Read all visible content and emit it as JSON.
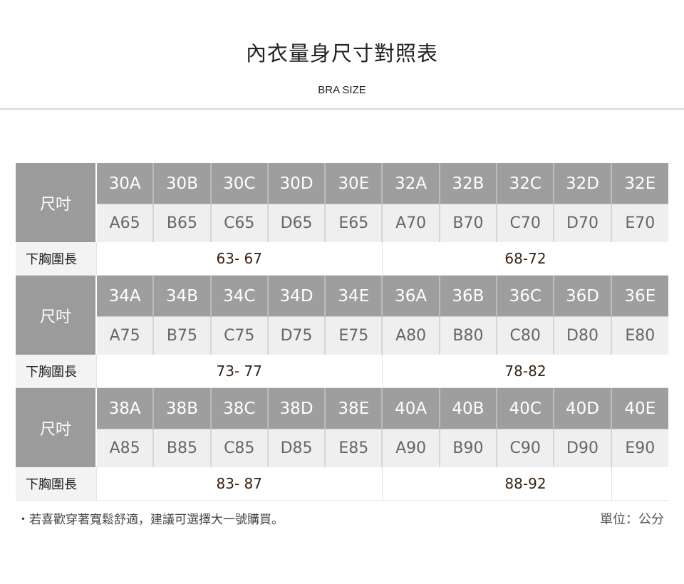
{
  "header": {
    "title": "內衣量身尺寸對照表",
    "subtitle": "BRA SIZE"
  },
  "table": {
    "size_label": "尺吋",
    "measure_label": "下胸圍長",
    "blocks": [
      {
        "sizes": [
          "30A",
          "30B",
          "30C",
          "30D",
          "30E",
          "32A",
          "32B",
          "32C",
          "32D",
          "32E"
        ],
        "cups": [
          "A65",
          "B65",
          "C65",
          "D65",
          "E65",
          "A70",
          "B70",
          "C70",
          "D70",
          "E70"
        ],
        "ranges": [
          "63- 67",
          "68-72"
        ]
      },
      {
        "sizes": [
          "34A",
          "34B",
          "34C",
          "34D",
          "34E",
          "36A",
          "36B",
          "36C",
          "36D",
          "36E"
        ],
        "cups": [
          "A75",
          "B75",
          "C75",
          "D75",
          "E75",
          "A80",
          "B80",
          "C80",
          "D80",
          "E80"
        ],
        "ranges": [
          "73- 77",
          "78-82"
        ]
      },
      {
        "sizes": [
          "38A",
          "38B",
          "38C",
          "38D",
          "38E",
          "40A",
          "40B",
          "40C",
          "40D",
          "40E"
        ],
        "cups": [
          "A85",
          "B85",
          "C85",
          "D85",
          "E85",
          "A90",
          "B90",
          "C90",
          "D90",
          "E90"
        ],
        "ranges": [
          "83- 87",
          "88-92"
        ]
      }
    ]
  },
  "footer": {
    "note": "・若喜歡穿著寬鬆舒適，建議可選擇大一號購買。",
    "unit": "單位：公分"
  },
  "colors": {
    "header_bg": "#9e9e9e",
    "cup_bg": "#efefef",
    "range_text": "#3a2212"
  }
}
